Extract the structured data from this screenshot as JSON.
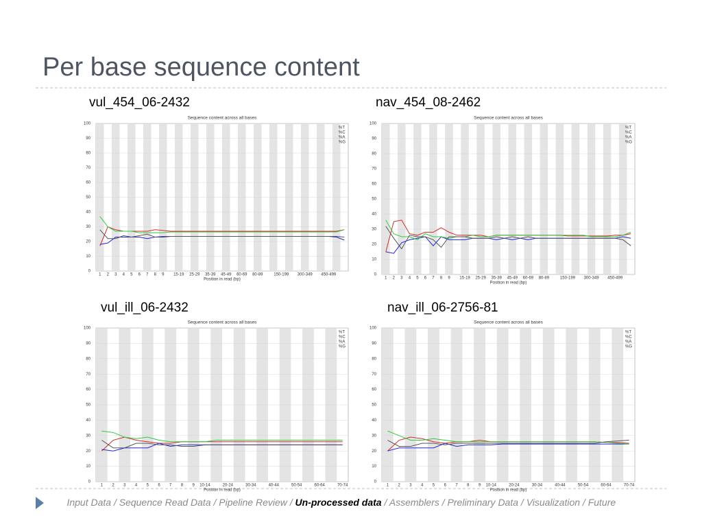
{
  "title": "Per base sequence content",
  "footer": {
    "segments": [
      "Input Data / Sequence Read Data / Pipeline Review / ",
      "Un-processed data",
      " / Assemblers / Preliminary Data / Visualization / Future"
    ],
    "current": 1
  },
  "chart_data": [
    {
      "type": "line",
      "caption": "vul_454_06-2432",
      "title": "Sequence content across all bases",
      "x_label": "Position in read (bp)",
      "categories": [
        "1",
        "2",
        "3",
        "4",
        "5",
        "6",
        "7",
        "8",
        "9",
        null,
        "15-19",
        null,
        "25-29",
        null,
        "35-39",
        null,
        "45-49",
        null,
        "60-69",
        null,
        "80-89",
        null,
        null,
        "150-199",
        null,
        null,
        "300-349",
        null,
        null,
        "450-499",
        null,
        null
      ],
      "series": [
        {
          "name": "%T",
          "color": "#d62728",
          "values": [
            17,
            30,
            28,
            27,
            27,
            27,
            27,
            28,
            27.5,
            27,
            27,
            27,
            27,
            27,
            27,
            27,
            27,
            27,
            27,
            27,
            27,
            27,
            27,
            27,
            27,
            27,
            27,
            27,
            27,
            27,
            27,
            28
          ]
        },
        {
          "name": "%C",
          "color": "#2424d6",
          "values": [
            18,
            19,
            23,
            23,
            23,
            23,
            22,
            23,
            23,
            23.5,
            23.5,
            23.5,
            23.5,
            23.5,
            23.5,
            23.5,
            23.5,
            23.5,
            23.5,
            23.5,
            23.5,
            23.5,
            23.5,
            23.5,
            23.5,
            23.5,
            23.5,
            23.5,
            23.5,
            23.5,
            23,
            21
          ]
        },
        {
          "name": "%A",
          "color": "#2ecc40",
          "values": [
            37,
            30,
            27,
            27,
            27,
            26,
            26,
            26,
            26,
            26.5,
            26.5,
            26.5,
            26.5,
            26.5,
            26.5,
            26.5,
            26.5,
            26.5,
            26.5,
            26.5,
            26.5,
            26.5,
            26.5,
            26.5,
            26.5,
            26.5,
            26.5,
            26.5,
            26.5,
            26.5,
            26.5,
            28
          ]
        },
        {
          "name": "%G",
          "color": "#555555",
          "values": [
            28,
            22,
            22,
            24,
            23,
            24,
            25,
            23,
            23.5,
            23.5,
            23.5,
            23.5,
            23.5,
            23.5,
            23.5,
            23.5,
            23.5,
            23.5,
            23.5,
            23.5,
            23.5,
            23.5,
            23.5,
            23.5,
            23.5,
            23.5,
            23.5,
            23.5,
            23.5,
            23.5,
            23.5,
            23
          ]
        }
      ],
      "ylim": [
        0,
        100
      ],
      "yticks": [
        0,
        10,
        20,
        30,
        40,
        50,
        60,
        70,
        80,
        90,
        100
      ],
      "grid": true,
      "legend": "top-right"
    },
    {
      "type": "line",
      "caption": "nav_454_08-2462",
      "title": "Sequence content across all bases",
      "x_label": "Position in read (bp)",
      "categories": [
        "1",
        "2",
        "3",
        "4",
        "5",
        "6",
        "7",
        "8",
        "9",
        null,
        "15-19",
        null,
        "25-29",
        null,
        "35-39",
        null,
        "45-49",
        null,
        "60-69",
        null,
        "80-89",
        null,
        null,
        "150-199",
        null,
        null,
        "300-349",
        null,
        null,
        "450-499",
        null,
        null
      ],
      "series": [
        {
          "name": "%T",
          "color": "#d62728",
          "values": [
            15,
            35,
            36,
            27,
            26,
            28,
            28,
            31,
            28,
            26,
            26,
            26,
            26,
            25,
            26,
            26,
            26,
            26,
            26,
            26,
            26,
            26,
            26,
            25.5,
            25.5,
            25.5,
            25.5,
            25.5,
            25.5,
            26,
            26,
            27
          ]
        },
        {
          "name": "%C",
          "color": "#2424d6",
          "values": [
            15,
            14,
            21,
            23,
            24,
            25,
            19,
            25,
            23,
            23,
            23,
            24,
            24,
            24,
            23,
            24,
            23,
            24,
            23,
            24,
            24,
            24,
            24,
            24,
            24,
            24,
            24,
            24,
            24,
            24,
            25,
            24
          ]
        },
        {
          "name": "%A",
          "color": "#2ecc40",
          "values": [
            36,
            27,
            25,
            25,
            23,
            27,
            25,
            25,
            24,
            25,
            25,
            26,
            25,
            25,
            26,
            26,
            26,
            26,
            26,
            26,
            26,
            26,
            26,
            26,
            26,
            26,
            25,
            25,
            25,
            25,
            26,
            28
          ]
        },
        {
          "name": "%G",
          "color": "#555555",
          "values": [
            32,
            24,
            17,
            26,
            25,
            25,
            23,
            18,
            25,
            25,
            25,
            24,
            24,
            24,
            25,
            24,
            25,
            24,
            25,
            24,
            24,
            24,
            24,
            24,
            24,
            24,
            24,
            24,
            24,
            24,
            23,
            19
          ]
        }
      ],
      "ylim": [
        0,
        100
      ],
      "yticks": [
        0,
        10,
        20,
        30,
        40,
        50,
        60,
        70,
        80,
        90,
        100
      ],
      "grid": true,
      "legend": "top-right"
    },
    {
      "type": "line",
      "caption": "vul_ill_06-2432",
      "title": "Sequence content across all bases",
      "x_label": "Position in read (bp)",
      "categories": [
        "1",
        "2",
        "3",
        "4",
        "5",
        "6",
        "7",
        "8",
        "9",
        "10-14",
        null,
        "20-24",
        null,
        "30-34",
        null,
        "40-44",
        null,
        "50-54",
        null,
        "60-64",
        null,
        "70-74"
      ],
      "series": [
        {
          "name": "%T",
          "color": "#d62728",
          "values": [
            20,
            27,
            29,
            27,
            26,
            25,
            25,
            26,
            26,
            26,
            26,
            26,
            26,
            26,
            26,
            26,
            26,
            26,
            26,
            26,
            26,
            26
          ]
        },
        {
          "name": "%C",
          "color": "#2424d6",
          "values": [
            21,
            20,
            22,
            22,
            22,
            25,
            23,
            24,
            24,
            24,
            24,
            24,
            24,
            24,
            24,
            24,
            24,
            24,
            24,
            24,
            24,
            24
          ]
        },
        {
          "name": "%A",
          "color": "#2ecc40",
          "values": [
            33,
            32,
            29,
            28,
            29,
            27,
            26,
            26,
            26,
            26,
            27,
            27,
            27,
            27,
            27,
            27,
            27,
            27,
            27,
            27,
            27,
            27
          ]
        },
        {
          "name": "%G",
          "color": "#555555",
          "values": [
            27,
            22,
            22,
            25,
            25,
            24,
            24,
            23,
            23,
            24,
            24,
            24,
            24,
            24,
            24,
            24,
            24,
            24,
            24,
            24,
            24,
            24
          ]
        }
      ],
      "ylim": [
        0,
        100
      ],
      "yticks": [
        0,
        10,
        20,
        30,
        40,
        50,
        60,
        70,
        80,
        90,
        100
      ],
      "grid": true,
      "legend": "top-right"
    },
    {
      "type": "line",
      "caption": "nav_ill_06-2756-81",
      "title": "Sequence content across all bases",
      "x_label": "Position in read (bp)",
      "categories": [
        "1",
        "2",
        "3",
        "4",
        "5",
        "6",
        "7",
        "8",
        "9",
        "10-14",
        null,
        "20-24",
        null,
        "30-34",
        null,
        "40-44",
        null,
        "50-54",
        null,
        "60-64",
        null,
        "70-74"
      ],
      "series": [
        {
          "name": "%T",
          "color": "#d62728",
          "values": [
            20,
            27,
            29,
            28,
            26,
            25,
            26,
            26,
            27,
            26,
            26,
            26,
            26,
            26,
            26,
            26,
            26,
            26,
            26,
            25.5,
            25.5,
            25
          ]
        },
        {
          "name": "%C",
          "color": "#2424d6",
          "values": [
            20,
            22,
            22,
            22,
            22,
            25,
            23,
            24,
            24,
            24,
            24.5,
            24.5,
            24.5,
            24.5,
            24.5,
            24.5,
            24.5,
            24.5,
            24.5,
            24.5,
            24.5,
            24.5
          ]
        },
        {
          "name": "%A",
          "color": "#2ecc40",
          "values": [
            33,
            30,
            27,
            27,
            28,
            27,
            26,
            26,
            26,
            26,
            26,
            26,
            26,
            26,
            26,
            26,
            26,
            26,
            26,
            25.5,
            25,
            24.5
          ]
        },
        {
          "name": "%G",
          "color": "#555555",
          "values": [
            27,
            23,
            23,
            25,
            25,
            24,
            25,
            25,
            25,
            25,
            25,
            25,
            25,
            25,
            25,
            25,
            25,
            25,
            25,
            26,
            26.5,
            27
          ]
        }
      ],
      "ylim": [
        0,
        100
      ],
      "yticks": [
        0,
        10,
        20,
        30,
        40,
        50,
        60,
        70,
        80,
        90,
        100
      ],
      "grid": true,
      "legend": "top-right"
    }
  ]
}
